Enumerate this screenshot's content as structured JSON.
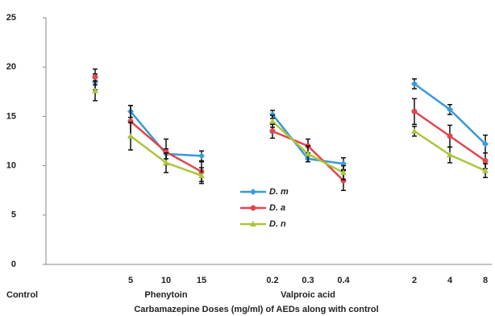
{
  "chart_data": {
    "type": "line",
    "x_label": "Carbamazepine Doses (mg/ml) of AEDs along with control",
    "categories": [
      "Control",
      "5",
      "10",
      "15",
      null,
      "0.2",
      "0.3",
      "0.4",
      null,
      "2",
      "4",
      "8"
    ],
    "groups": [
      "Phenytoin",
      "Valproic acid"
    ],
    "series": [
      {
        "name": "D. m",
        "color": "#3a9ad9",
        "marker": "diamond",
        "values": [
          18.5,
          15.5,
          11.2,
          11.0,
          null,
          15.2,
          10.7,
          10.2,
          null,
          18.3,
          15.7,
          12.2
        ],
        "errors": [
          0.8,
          0.6,
          0.5,
          0.5,
          null,
          0.4,
          0.3,
          0.6,
          null,
          0.5,
          0.5,
          0.9
        ]
      },
      {
        "name": "D. a",
        "color": "#e0474c",
        "marker": "circle",
        "values": [
          19.0,
          14.5,
          11.4,
          9.4,
          null,
          13.5,
          12.0,
          8.5,
          null,
          15.5,
          13.0,
          10.5
        ],
        "errors": [
          0.8,
          1.6,
          1.3,
          1.0,
          null,
          0.7,
          0.7,
          1.0,
          null,
          1.3,
          1.1,
          0.8
        ]
      },
      {
        "name": "D. n",
        "color": "#a9c63a",
        "marker": "triangle",
        "values": [
          17.6,
          13.0,
          10.3,
          9.0,
          null,
          14.5,
          11.2,
          9.3,
          null,
          13.5,
          11.1,
          9.5
        ],
        "errors": [
          1.0,
          1.4,
          1.0,
          0.8,
          null,
          0.6,
          0.8,
          0.7,
          null,
          0.5,
          0.8,
          0.7
        ]
      }
    ],
    "ylim": [
      0,
      25
    ],
    "yticks": [
      0,
      5,
      10,
      15,
      20,
      25
    ],
    "grid": false
  }
}
